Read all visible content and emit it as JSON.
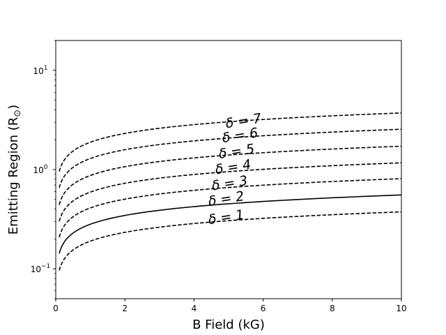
{
  "chart_data": {
    "type": "line",
    "title": "",
    "xlabel": "B Field (kG)",
    "ylabel": "Emitting Region (R",
    "ylabel_symbol": "⊙",
    "ylabel_close": ")",
    "xlim": [
      0,
      10
    ],
    "ylim": [
      0.05,
      20
    ],
    "yscale": "log",
    "grid": false,
    "x_ticks": [
      0,
      2,
      4,
      6,
      8,
      10
    ],
    "x_tick_labels": [
      "0",
      "2",
      "4",
      "6",
      "8",
      "10"
    ],
    "y_ticks": [
      0.1,
      1,
      10
    ],
    "y_tick_labels": [
      "10",
      "10",
      "10"
    ],
    "y_tick_exponents": [
      "−1",
      "0",
      "1"
    ],
    "x_range": [
      0.1,
      10
    ],
    "exponent": 0.295,
    "series": [
      {
        "label": "δ = 1",
        "scale": 0.375,
        "style": "dashed",
        "label_x": 4.95,
        "label_y": 0.3
      },
      {
        "label": "δ = 2",
        "scale": 0.555,
        "style": "solid",
        "label_x": 4.95,
        "label_y": 0.46
      },
      {
        "label": "δ = 3",
        "scale": 0.81,
        "style": "dashed",
        "label_x": 5.05,
        "label_y": 0.66
      },
      {
        "label": "δ = 4",
        "scale": 1.17,
        "style": "dashed",
        "label_x": 5.15,
        "label_y": 0.96
      },
      {
        "label": "δ = 5",
        "scale": 1.72,
        "style": "dashed",
        "label_x": 5.25,
        "label_y": 1.38
      },
      {
        "label": "δ = 6",
        "scale": 2.55,
        "style": "dashed",
        "label_x": 5.35,
        "label_y": 2.0
      },
      {
        "label": "δ = 7",
        "scale": 3.72,
        "style": "dashed",
        "label_x": 5.45,
        "label_y": 2.8
      }
    ]
  }
}
